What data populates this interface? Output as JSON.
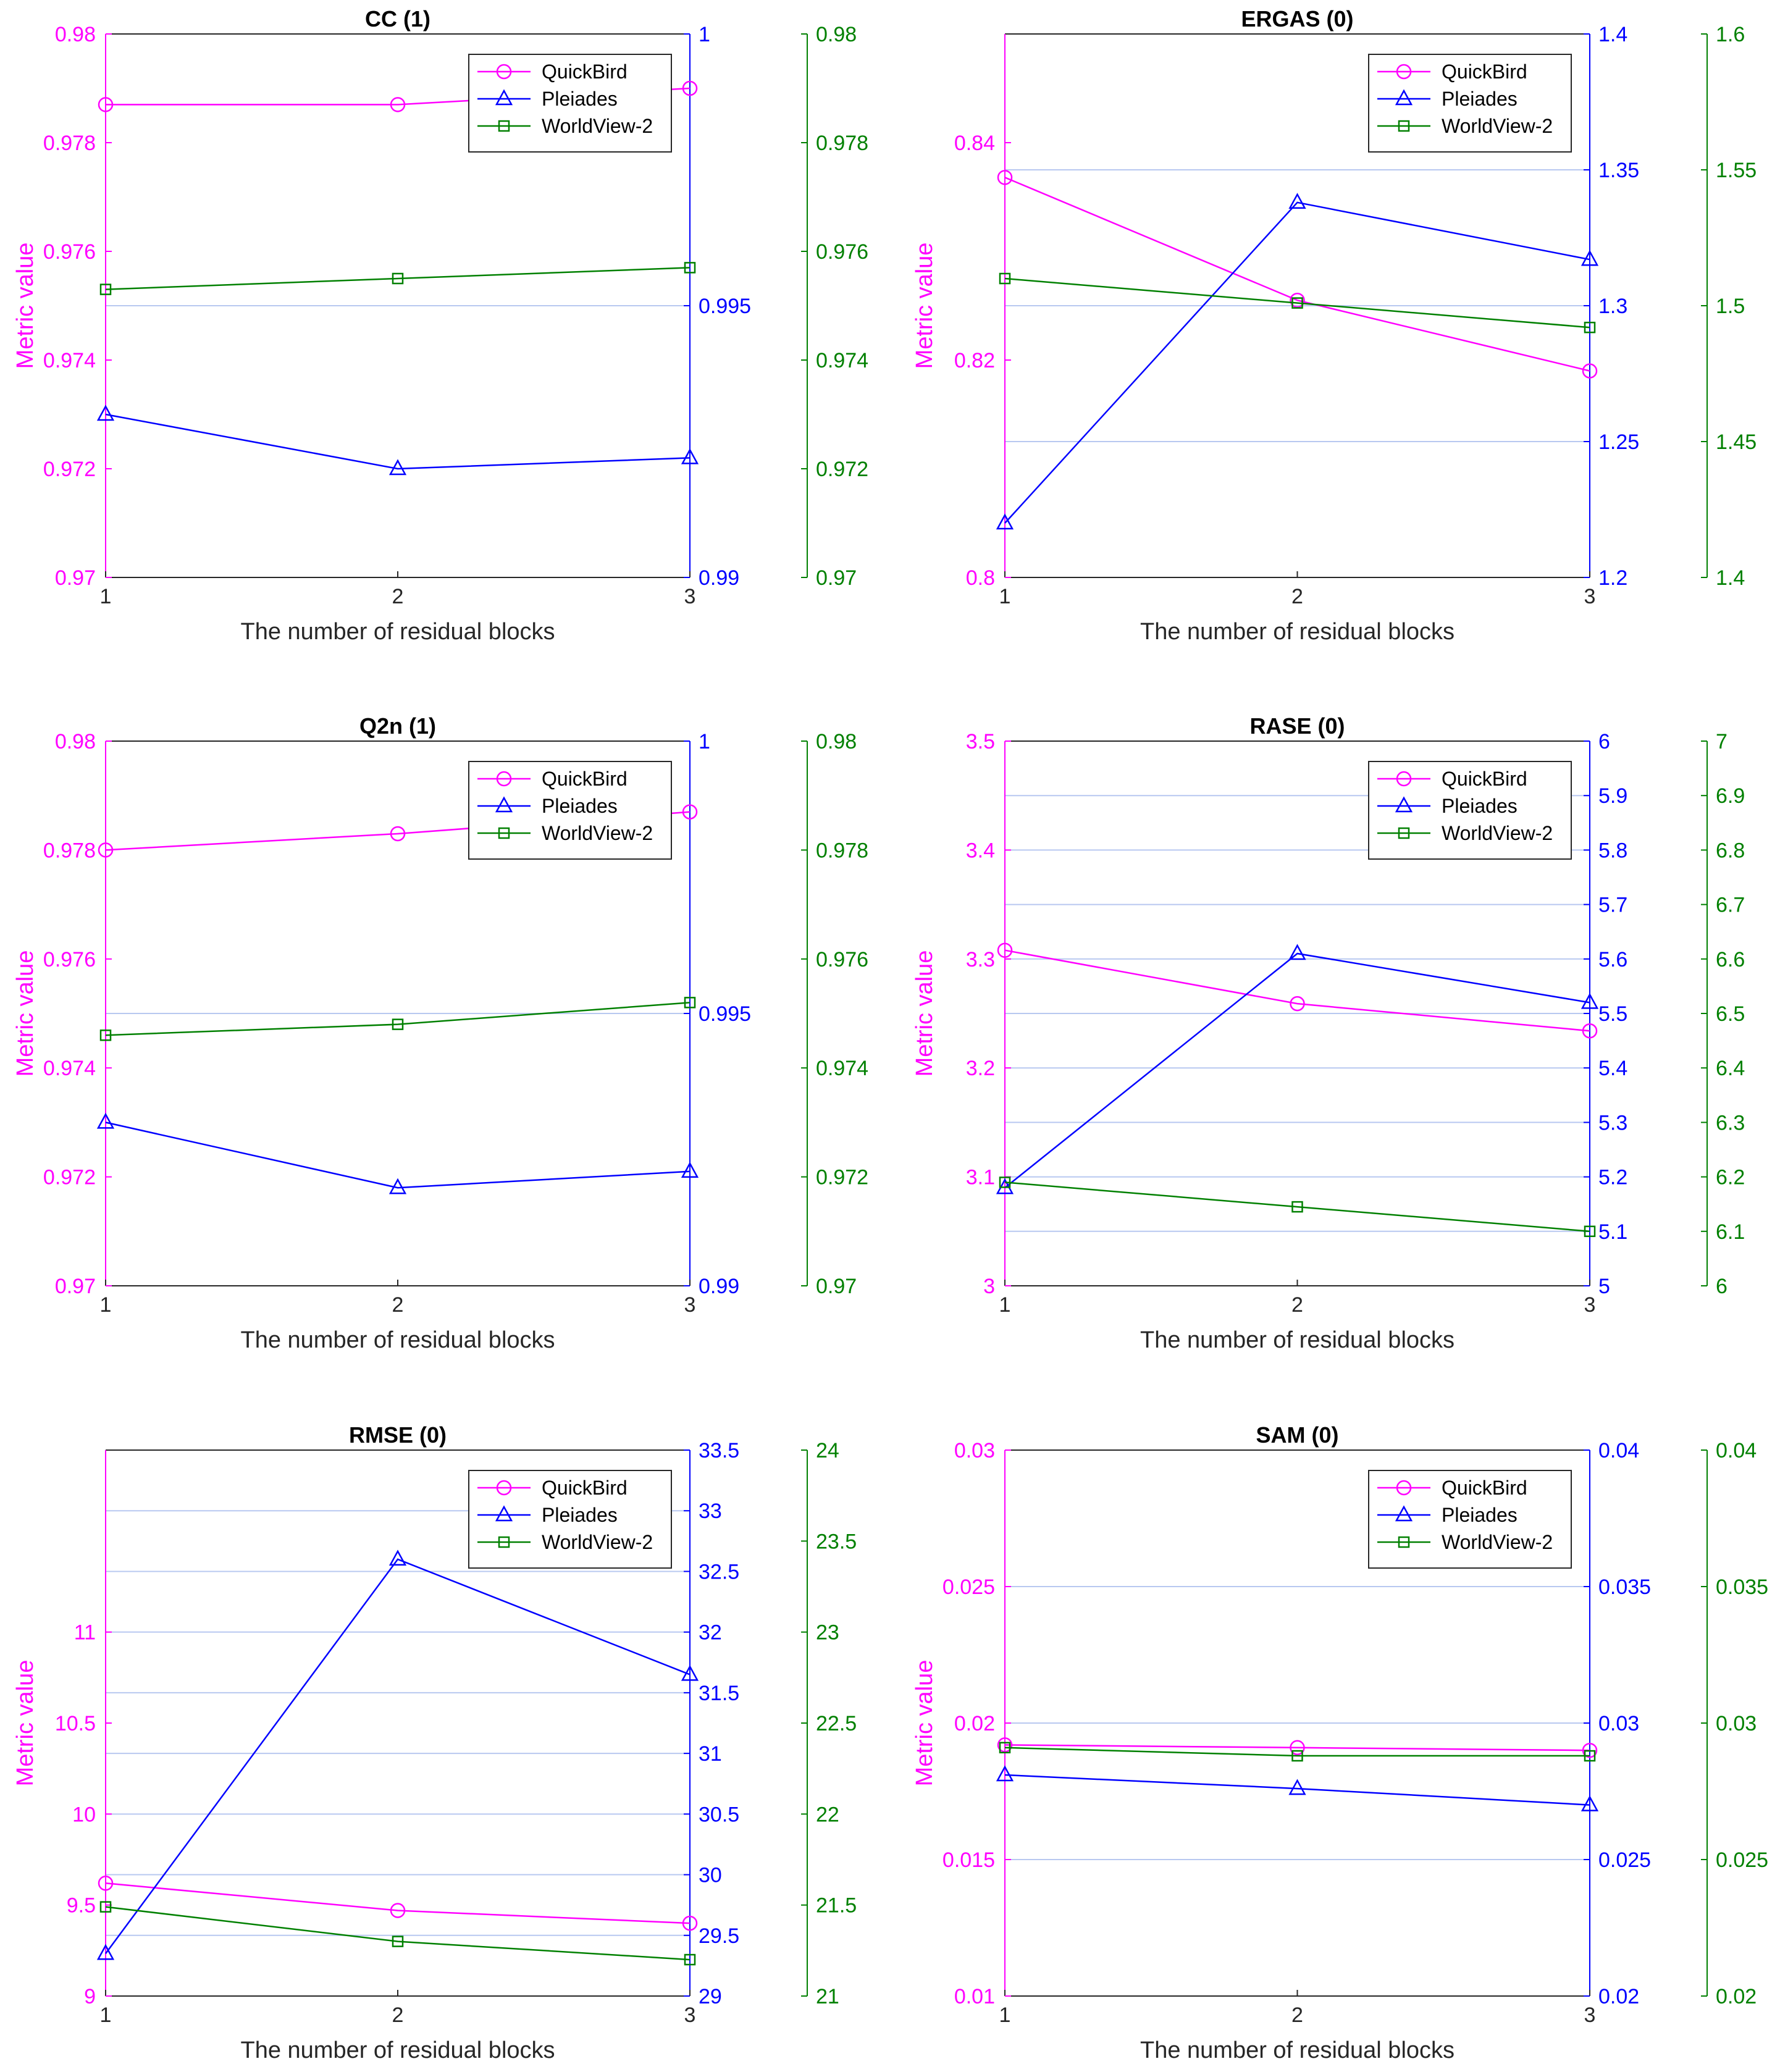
{
  "colors": {
    "quickbird": "#ff00ff",
    "pleiades": "#0000ff",
    "worldview": "#008000",
    "axis_black": "#262626",
    "grid": "#b8c8f0"
  },
  "legend_items": [
    {
      "name": "QuickBird",
      "marker": "circle"
    },
    {
      "name": "Pleiades",
      "marker": "triangle"
    },
    {
      "name": "WorldView-2",
      "marker": "square"
    }
  ],
  "chart_data": [
    {
      "type": "line",
      "title": "CC (1)",
      "xlabel": "The number of residual blocks",
      "ylabel": "Metric value",
      "x": [
        1,
        2,
        3
      ],
      "x_ticks": [
        "1",
        "2",
        "3"
      ],
      "legend_position": "top-right",
      "axes": {
        "left": {
          "range": [
            0.97,
            0.98
          ],
          "ticks": [
            "0.97",
            "0.972",
            "0.974",
            "0.976",
            "0.978",
            "0.98"
          ]
        },
        "right1": {
          "range": [
            0.99,
            1.0
          ],
          "ticks": [
            "0.99",
            "0.995",
            "1"
          ]
        },
        "right2": {
          "range": [
            0.97,
            0.98
          ],
          "ticks": [
            "0.97",
            "0.972",
            "0.974",
            "0.976",
            "0.978",
            "0.98"
          ]
        }
      },
      "series": [
        {
          "name": "QuickBird",
          "axis": "left",
          "values": [
            0.9787,
            0.9787,
            0.979
          ]
        },
        {
          "name": "Pleiades",
          "axis": "right1",
          "values": [
            0.993,
            0.992,
            0.9922
          ]
        },
        {
          "name": "WorldView-2",
          "axis": "right2",
          "values": [
            0.9753,
            0.9755,
            0.9757
          ]
        }
      ]
    },
    {
      "type": "line",
      "title": "ERGAS (0)",
      "xlabel": "The number of residual blocks",
      "ylabel": "Metric value",
      "x": [
        1,
        2,
        3
      ],
      "x_ticks": [
        "1",
        "2",
        "3"
      ],
      "legend_position": "top-right",
      "axes": {
        "left": {
          "range": [
            0.8,
            0.85
          ],
          "ticks": [
            "0.8",
            "0.82",
            "0.84"
          ]
        },
        "right1": {
          "range": [
            1.2,
            1.4
          ],
          "ticks": [
            "1.2",
            "1.25",
            "1.3",
            "1.35",
            "1.4"
          ]
        },
        "right2": {
          "range": [
            1.4,
            1.6
          ],
          "ticks": [
            "1.4",
            "1.45",
            "1.5",
            "1.55",
            "1.6"
          ]
        }
      },
      "series": [
        {
          "name": "QuickBird",
          "axis": "left",
          "values": [
            0.8368,
            0.8255,
            0.819
          ]
        },
        {
          "name": "Pleiades",
          "axis": "right1",
          "values": [
            1.22,
            1.338,
            1.317
          ]
        },
        {
          "name": "WorldView-2",
          "axis": "right2",
          "values": [
            1.51,
            1.501,
            1.492
          ]
        }
      ]
    },
    {
      "type": "line",
      "title": "Q2n (1)",
      "xlabel": "The number of residual blocks",
      "ylabel": "Metric value",
      "x": [
        1,
        2,
        3
      ],
      "x_ticks": [
        "1",
        "2",
        "3"
      ],
      "legend_position": "top-right",
      "axes": {
        "left": {
          "range": [
            0.97,
            0.98
          ],
          "ticks": [
            "0.97",
            "0.972",
            "0.974",
            "0.976",
            "0.978",
            "0.98"
          ]
        },
        "right1": {
          "range": [
            0.99,
            1.0
          ],
          "ticks": [
            "0.99",
            "0.995",
            "1"
          ]
        },
        "right2": {
          "range": [
            0.97,
            0.98
          ],
          "ticks": [
            "0.97",
            "0.972",
            "0.974",
            "0.976",
            "0.978",
            "0.98"
          ]
        }
      },
      "series": [
        {
          "name": "QuickBird",
          "axis": "left",
          "values": [
            0.978,
            0.9783,
            0.9787
          ]
        },
        {
          "name": "Pleiades",
          "axis": "right1",
          "values": [
            0.993,
            0.9918,
            0.9921
          ]
        },
        {
          "name": "WorldView-2",
          "axis": "right2",
          "values": [
            0.9746,
            0.9748,
            0.9752
          ]
        }
      ]
    },
    {
      "type": "line",
      "title": "RASE (0)",
      "xlabel": "The number of residual blocks",
      "ylabel": "Metric value",
      "x": [
        1,
        2,
        3
      ],
      "x_ticks": [
        "1",
        "2",
        "3"
      ],
      "legend_position": "top-right",
      "axes": {
        "left": {
          "range": [
            3.0,
            3.5
          ],
          "ticks": [
            "3",
            "3.1",
            "3.2",
            "3.3",
            "3.4",
            "3.5"
          ]
        },
        "right1": {
          "range": [
            5.0,
            6.0
          ],
          "ticks": [
            "5",
            "5.1",
            "5.2",
            "5.3",
            "5.4",
            "5.5",
            "5.6",
            "5.7",
            "5.8",
            "5.9",
            "6"
          ]
        },
        "right2": {
          "range": [
            6.0,
            7.0
          ],
          "ticks": [
            "6",
            "6.1",
            "6.2",
            "6.3",
            "6.4",
            "6.5",
            "6.6",
            "6.7",
            "6.8",
            "6.9",
            "7"
          ]
        }
      },
      "series": [
        {
          "name": "QuickBird",
          "axis": "left",
          "values": [
            3.308,
            3.259,
            3.234
          ]
        },
        {
          "name": "Pleiades",
          "axis": "right1",
          "values": [
            5.18,
            5.61,
            5.52
          ]
        },
        {
          "name": "WorldView-2",
          "axis": "right2",
          "values": [
            6.19,
            6.145,
            6.1
          ]
        }
      ]
    },
    {
      "type": "line",
      "title": "RMSE (0)",
      "xlabel": "The number of residual blocks",
      "ylabel": "Metric value",
      "x": [
        1,
        2,
        3
      ],
      "x_ticks": [
        "1",
        "2",
        "3"
      ],
      "legend_position": "top-right",
      "axes": {
        "left": {
          "range": [
            9.0,
            12.0
          ],
          "ticks": [
            "9",
            "9.5",
            "10",
            "10.5",
            "11"
          ]
        },
        "right1": {
          "range": [
            29.0,
            33.5
          ],
          "ticks": [
            "29",
            "29.5",
            "30",
            "30.5",
            "31",
            "31.5",
            "32",
            "32.5",
            "33",
            "33.5"
          ]
        },
        "right2": {
          "range": [
            21.0,
            24.0
          ],
          "ticks": [
            "21",
            "21.5",
            "22",
            "22.5",
            "23",
            "23.5",
            "24"
          ]
        }
      },
      "series": [
        {
          "name": "QuickBird",
          "axis": "left",
          "values": [
            9.62,
            9.47,
            9.4
          ]
        },
        {
          "name": "Pleiades",
          "axis": "right1",
          "values": [
            29.35,
            32.6,
            31.65
          ]
        },
        {
          "name": "WorldView-2",
          "axis": "right2",
          "values": [
            21.49,
            21.3,
            21.2
          ]
        }
      ]
    },
    {
      "type": "line",
      "title": "SAM (0)",
      "xlabel": "The number of residual blocks",
      "ylabel": "Metric value",
      "x": [
        1,
        2,
        3
      ],
      "x_ticks": [
        "1",
        "2",
        "3"
      ],
      "legend_position": "top-right",
      "axes": {
        "left": {
          "range": [
            0.01,
            0.03
          ],
          "ticks": [
            "0.01",
            "0.015",
            "0.02",
            "0.025",
            "0.03"
          ]
        },
        "right1": {
          "range": [
            0.02,
            0.04
          ],
          "ticks": [
            "0.02",
            "0.025",
            "0.03",
            "0.035",
            "0.04"
          ]
        },
        "right2": {
          "range": [
            0.02,
            0.04
          ],
          "ticks": [
            "0.02",
            "0.025",
            "0.03",
            "0.035",
            "0.04"
          ]
        }
      },
      "series": [
        {
          "name": "QuickBird",
          "axis": "left",
          "values": [
            0.0192,
            0.0191,
            0.019
          ]
        },
        {
          "name": "Pleiades",
          "axis": "right1",
          "values": [
            0.0281,
            0.0276,
            0.027
          ]
        },
        {
          "name": "WorldView-2",
          "axis": "right2",
          "values": [
            0.0291,
            0.0288,
            0.0288
          ]
        }
      ]
    }
  ]
}
